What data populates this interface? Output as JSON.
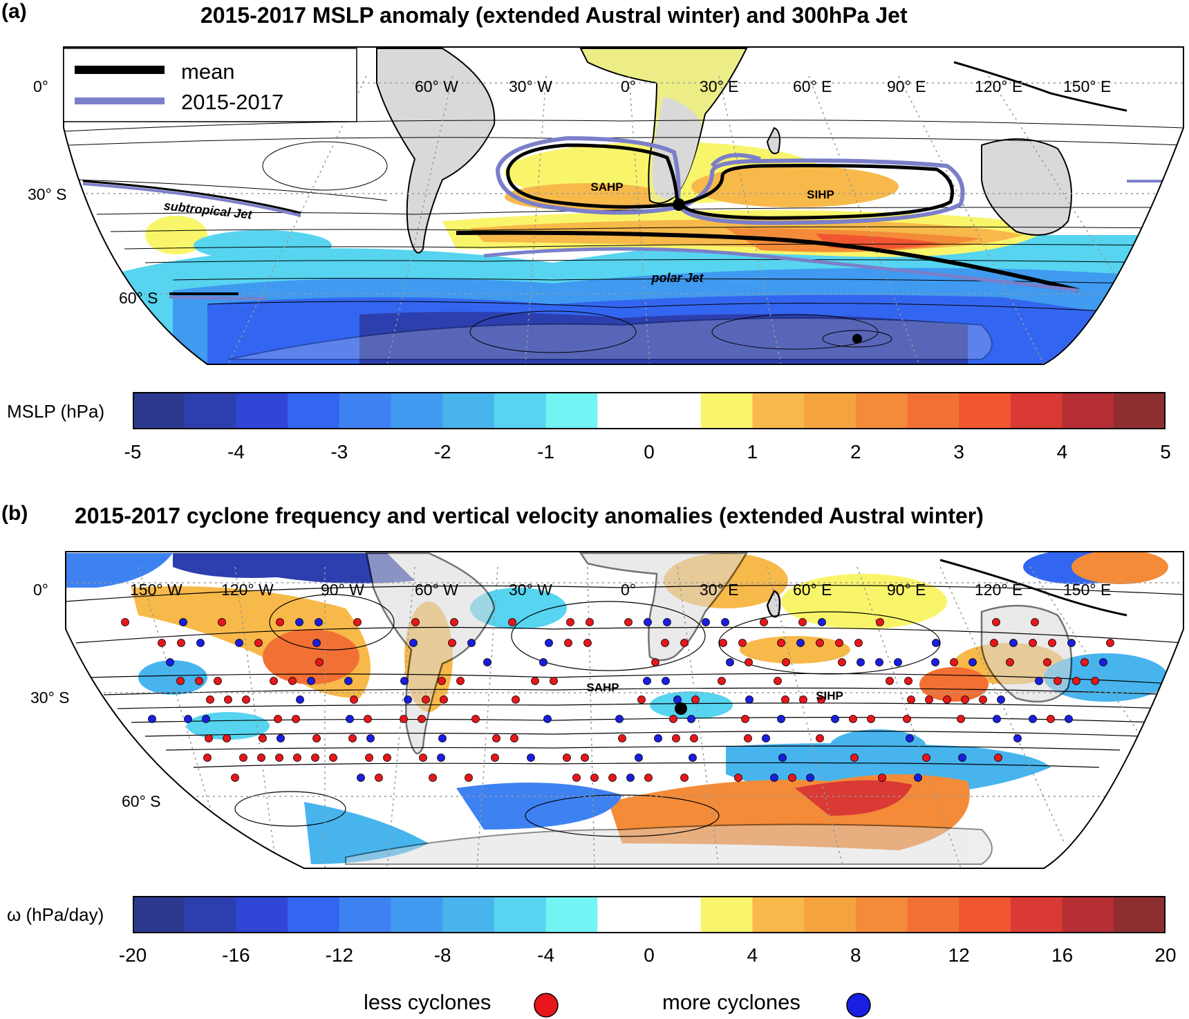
{
  "panel_a": {
    "label": "(a)",
    "title": "2015-2017 MSLP anomaly (extended Austral winter) and 300hPa Jet",
    "legend": {
      "mean": "mean",
      "period": "2015-2017"
    },
    "lon_labels": [
      "60° W",
      "30° W",
      "0°",
      "30° E",
      "60° E",
      "90° E",
      "120° E",
      "150° E"
    ],
    "lat_labels": [
      "0°",
      "30° S",
      "60° S"
    ],
    "annotations": {
      "sahp": "SAHP",
      "sihp": "SIHP",
      "subtropical_jet": "subtropical Jet",
      "polar_jet": "polar Jet"
    },
    "colorbar": {
      "label": "MSLP (hPa)",
      "ticks": [
        "-5",
        "-4",
        "-3",
        "-2",
        "-1",
        "0",
        "1",
        "2",
        "3",
        "4",
        "5"
      ]
    }
  },
  "panel_b": {
    "label": "(b)",
    "title": "2015-2017 cyclone frequency and vertical velocity anomalies  (extended Austral winter)",
    "lon_labels": [
      "150° W",
      "120° W",
      "90° W",
      "60° W",
      "30° W",
      "0°",
      "30° E",
      "60° E",
      "90° E",
      "120° E",
      "150° E"
    ],
    "lat_labels": [
      "0°",
      "30° S",
      "60° S"
    ],
    "annotations": {
      "sahp": "SAHP",
      "sihp": "SIHP"
    },
    "colorbar": {
      "label": "ω  (hPa/day)",
      "ticks": [
        "-20",
        "-16",
        "-12",
        "-8",
        "-4",
        "0",
        "4",
        "8",
        "12",
        "16",
        "20"
      ]
    },
    "cyclone_legend": {
      "less": "less cyclones",
      "more": "more cyclones"
    }
  },
  "colors": {
    "scale": [
      "#2b3a8f",
      "#2d3fae",
      "#2f46d6",
      "#3366f0",
      "#3e82f2",
      "#3f9af0",
      "#47b4ee",
      "#56d4f0",
      "#73f3f3",
      "#ffffff",
      "#ffffff",
      "#f9f56a",
      "#f7b94a",
      "#f5a33e",
      "#f48b38",
      "#f27034",
      "#f15631",
      "#d93a34",
      "#b52e34",
      "#8f2e30"
    ],
    "land": "#d9d9d9",
    "mean_jet": "#000000",
    "period_jet": "#7b7fc9",
    "less_cyclones": "#e8161b",
    "more_cyclones": "#1a1ee0"
  }
}
